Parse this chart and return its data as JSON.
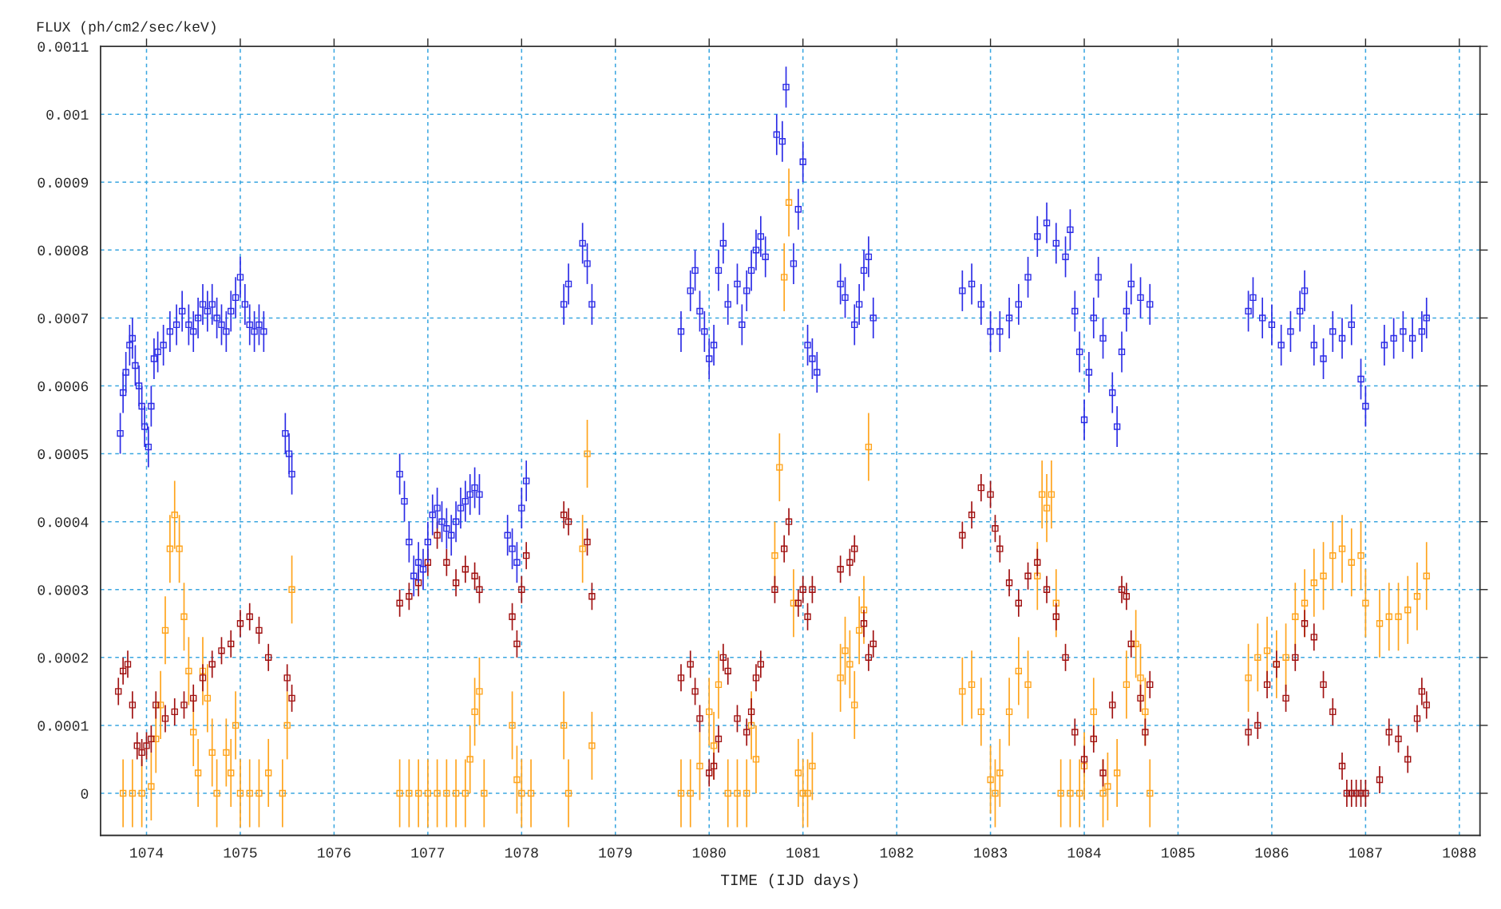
{
  "chart_data": {
    "type": "scatter",
    "xlabel": "TIME (IJD days)",
    "ylabel": "FLUX (ph/cm2/sec/keV)",
    "xlim": [
      1073.51,
      1088.22
    ],
    "ylim": [
      -6.2e-05,
      0.0011
    ],
    "xticks": [
      1074,
      1075,
      1076,
      1077,
      1078,
      1079,
      1080,
      1081,
      1082,
      1083,
      1084,
      1085,
      1086,
      1087,
      1088
    ],
    "yticks": [
      0,
      0.0001,
      0.0002,
      0.0003,
      0.0004,
      0.0005,
      0.0006,
      0.0007,
      0.0008,
      0.0009,
      0.001,
      0.0011
    ],
    "grid": true,
    "marker": "square",
    "legend": false,
    "series": [
      {
        "color": "#2b2be6",
        "errors": [
          3e-05,
          3e-05,
          3e-05,
          3e-05,
          3e-05,
          3e-05,
          3e-05,
          3e-05,
          3e-05,
          3e-05,
          3e-05,
          3e-05,
          3e-05,
          3e-05,
          3e-05,
          3e-05,
          3e-05,
          3e-05,
          3e-05,
          3e-05,
          3e-05,
          3e-05,
          3e-05,
          3e-05,
          3e-05,
          3e-05,
          3e-05,
          3e-05,
          3e-05,
          3e-05,
          3e-05,
          3e-05,
          3e-05,
          3e-05,
          3e-05,
          3e-05,
          3e-05,
          3e-05,
          3e-05,
          3e-05,
          3e-05,
          3e-05,
          3e-05,
          3e-05,
          3e-05,
          3e-05,
          3e-05,
          3e-05,
          3e-05,
          3e-05,
          3e-05,
          3e-05,
          3e-05,
          3e-05,
          3e-05,
          3e-05,
          3e-05,
          3e-05,
          3e-05,
          3e-05,
          3e-05,
          3e-05,
          3e-05,
          3e-05,
          3e-05,
          3e-05,
          3e-05,
          3e-05,
          3e-05,
          3e-05,
          3e-05,
          3e-05,
          3e-05,
          3e-05,
          3e-05,
          3e-05,
          3e-05,
          3e-05,
          3e-05,
          3e-05,
          3e-05,
          3e-05,
          3e-05,
          3e-05,
          3e-05,
          3e-05,
          3e-05,
          3e-05,
          3e-05,
          3e-05,
          3e-05,
          3e-05,
          3e-05,
          3e-05,
          3e-05,
          3e-05,
          3e-05,
          3e-05,
          3e-05,
          3e-05,
          3e-05,
          3e-05,
          3e-05,
          3e-05,
          3e-05,
          3e-05,
          3e-05,
          3e-05,
          3e-05,
          3e-05,
          3e-05,
          3e-05,
          3e-05,
          3e-05,
          3e-05,
          3e-05,
          3e-05,
          3e-05,
          3e-05,
          3e-05,
          3e-05,
          3e-05,
          3e-05,
          3e-05,
          3e-05,
          3e-05,
          3e-05,
          3e-05,
          3e-05,
          3e-05,
          3e-05,
          3e-05,
          3e-05,
          3e-05,
          3e-05,
          3e-05,
          3e-05,
          3e-05,
          3e-05,
          3e-05,
          3e-05,
          3e-05,
          3e-05,
          3e-05,
          3e-05,
          3e-05
        ],
        "x": [
          1073.72,
          1073.75,
          1073.78,
          1073.82,
          1073.85,
          1073.88,
          1073.92,
          1073.95,
          1073.98,
          1074.02,
          1074.05,
          1074.08,
          1074.12,
          1074.18,
          1074.25,
          1074.32,
          1074.38,
          1074.45,
          1074.5,
          1074.55,
          1074.6,
          1074.65,
          1074.7,
          1074.75,
          1074.8,
          1074.85,
          1074.9,
          1074.95,
          1075.0,
          1075.05,
          1075.1,
          1075.15,
          1075.2,
          1075.25,
          1075.48,
          1075.52,
          1075.55,
          1076.7,
          1076.75,
          1076.8,
          1076.85,
          1076.9,
          1076.95,
          1077.0,
          1077.05,
          1077.1,
          1077.15,
          1077.2,
          1077.25,
          1077.3,
          1077.35,
          1077.4,
          1077.45,
          1077.5,
          1077.55,
          1077.85,
          1077.9,
          1077.95,
          1078.0,
          1078.05,
          1078.45,
          1078.5,
          1078.65,
          1078.7,
          1078.75,
          1079.7,
          1079.8,
          1079.85,
          1079.9,
          1079.95,
          1080.0,
          1080.05,
          1080.1,
          1080.15,
          1080.2,
          1080.3,
          1080.35,
          1080.4,
          1080.45,
          1080.5,
          1080.55,
          1080.6,
          1080.72,
          1080.78,
          1080.82,
          1080.9,
          1080.95,
          1081.0,
          1081.05,
          1081.1,
          1081.15,
          1081.4,
          1081.45,
          1081.55,
          1081.6,
          1081.65,
          1081.7,
          1081.75,
          1082.7,
          1082.8,
          1082.9,
          1083.0,
          1083.1,
          1083.2,
          1083.3,
          1083.4,
          1083.5,
          1083.6,
          1083.7,
          1083.8,
          1083.85,
          1083.9,
          1083.95,
          1084.0,
          1084.05,
          1084.1,
          1084.15,
          1084.2,
          1084.3,
          1084.35,
          1084.4,
          1084.45,
          1084.5,
          1084.6,
          1084.7,
          1085.75,
          1085.8,
          1085.9,
          1086.0,
          1086.1,
          1086.2,
          1086.3,
          1086.35,
          1086.45,
          1086.55,
          1086.65,
          1086.75,
          1086.85,
          1086.95,
          1087.0,
          1087.2,
          1087.3,
          1087.4,
          1087.5,
          1087.6,
          1087.65
        ],
        "values": [
          0.00053,
          0.00059,
          0.00062,
          0.00066,
          0.00067,
          0.00063,
          0.0006,
          0.00057,
          0.00054,
          0.00051,
          0.00057,
          0.00064,
          0.00065,
          0.00066,
          0.00068,
          0.00069,
          0.00071,
          0.00069,
          0.00068,
          0.0007,
          0.00072,
          0.00071,
          0.00072,
          0.0007,
          0.00069,
          0.00068,
          0.00071,
          0.00073,
          0.00076,
          0.00072,
          0.00069,
          0.00068,
          0.00069,
          0.00068,
          0.00053,
          0.0005,
          0.00047,
          0.00047,
          0.00043,
          0.00037,
          0.00032,
          0.00034,
          0.00033,
          0.00037,
          0.00041,
          0.00042,
          0.0004,
          0.00039,
          0.00038,
          0.0004,
          0.00042,
          0.00043,
          0.00044,
          0.00045,
          0.00044,
          0.00038,
          0.00036,
          0.00034,
          0.00042,
          0.00046,
          0.00072,
          0.00075,
          0.00081,
          0.00078,
          0.00072,
          0.00068,
          0.00074,
          0.00077,
          0.00071,
          0.00068,
          0.00064,
          0.00066,
          0.00077,
          0.00081,
          0.00072,
          0.00075,
          0.00069,
          0.00074,
          0.00077,
          0.0008,
          0.00082,
          0.00079,
          0.00097,
          0.00096,
          0.00104,
          0.00078,
          0.00086,
          0.00093,
          0.00066,
          0.00064,
          0.00062,
          0.00075,
          0.00073,
          0.00069,
          0.00072,
          0.00077,
          0.00079,
          0.0007,
          0.00074,
          0.00075,
          0.00072,
          0.00068,
          0.00068,
          0.0007,
          0.00072,
          0.00076,
          0.00082,
          0.00084,
          0.00081,
          0.00079,
          0.00083,
          0.00071,
          0.00065,
          0.00055,
          0.00062,
          0.0007,
          0.00076,
          0.00067,
          0.00059,
          0.00054,
          0.00065,
          0.00071,
          0.00075,
          0.00073,
          0.00072,
          0.00071,
          0.00073,
          0.0007,
          0.00069,
          0.00066,
          0.00068,
          0.00071,
          0.00074,
          0.00066,
          0.00064,
          0.00068,
          0.00067,
          0.00069,
          0.00061,
          0.00057,
          0.00066,
          0.00067,
          0.00068,
          0.00067,
          0.00068,
          0.0007
        ]
      },
      {
        "color": "#a01010",
        "errors": [
          2e-05,
          2e-05,
          2e-05,
          2e-05,
          2e-05,
          2e-05,
          2e-05,
          2e-05,
          2e-05,
          2e-05,
          2e-05,
          2e-05,
          2e-05,
          2e-05,
          2e-05,
          2e-05,
          2e-05,
          2e-05,
          2e-05,
          2e-05,
          2e-05,
          2e-05,
          2e-05,
          2e-05,
          2e-05,
          2e-05,
          2e-05,
          2e-05,
          2e-05,
          2e-05,
          2e-05,
          2e-05,
          2e-05,
          2e-05,
          2e-05,
          2e-05,
          2e-05,
          2e-05,
          2e-05,
          2e-05,
          2e-05,
          2e-05,
          2e-05,
          2e-05,
          2e-05,
          2e-05,
          2e-05,
          2e-05,
          2e-05,
          2e-05,
          2e-05,
          2e-05,
          2e-05,
          2e-05,
          2e-05,
          2e-05,
          2e-05,
          2e-05,
          2e-05,
          2e-05,
          2e-05,
          2e-05,
          2e-05,
          2e-05,
          2e-05,
          2e-05,
          2e-05,
          2e-05,
          2e-05,
          2e-05,
          2e-05,
          2e-05,
          2e-05,
          2e-05,
          2e-05,
          2e-05,
          2e-05,
          2e-05,
          2e-05,
          2e-05,
          2e-05,
          2e-05,
          2e-05,
          2e-05,
          2e-05,
          2e-05,
          2e-05,
          2e-05,
          2e-05,
          2e-05,
          2e-05,
          2e-05,
          2e-05,
          2e-05,
          2e-05,
          2e-05,
          2e-05,
          2e-05,
          2e-05,
          2e-05,
          2e-05,
          2e-05,
          2e-05,
          2e-05,
          2e-05,
          2e-05,
          2e-05,
          2e-05,
          2e-05,
          2e-05,
          2e-05,
          2e-05,
          2e-05,
          2e-05,
          2e-05
        ],
        "x": [
          1073.7,
          1073.75,
          1073.8,
          1073.85,
          1073.9,
          1073.95,
          1074.0,
          1074.05,
          1074.1,
          1074.2,
          1074.3,
          1074.4,
          1074.5,
          1074.6,
          1074.7,
          1074.8,
          1074.9,
          1075.0,
          1075.1,
          1075.2,
          1075.3,
          1075.5,
          1075.55,
          1076.7,
          1076.8,
          1076.9,
          1077.0,
          1077.1,
          1077.2,
          1077.3,
          1077.4,
          1077.5,
          1077.55,
          1077.9,
          1077.95,
          1078.0,
          1078.05,
          1078.45,
          1078.5,
          1078.7,
          1078.75,
          1079.7,
          1079.8,
          1079.85,
          1079.9,
          1080.0,
          1080.05,
          1080.1,
          1080.15,
          1080.2,
          1080.3,
          1080.4,
          1080.45,
          1080.5,
          1080.55,
          1080.7,
          1080.8,
          1080.85,
          1080.95,
          1081.0,
          1081.05,
          1081.1,
          1081.4,
          1081.5,
          1081.55,
          1081.65,
          1081.7,
          1081.75,
          1082.7,
          1082.8,
          1082.9,
          1083.0,
          1083.05,
          1083.1,
          1083.2,
          1083.3,
          1083.4,
          1083.5,
          1083.6,
          1083.7,
          1083.8,
          1083.9,
          1084.0,
          1084.1,
          1084.2,
          1084.3,
          1084.4,
          1084.45,
          1084.5,
          1084.6,
          1084.65,
          1084.7,
          1085.75,
          1085.85,
          1085.95,
          1086.05,
          1086.15,
          1086.25,
          1086.35,
          1086.45,
          1086.55,
          1086.65,
          1086.75,
          1086.8,
          1086.85,
          1086.9,
          1086.95,
          1087.0,
          1087.15,
          1087.25,
          1087.35,
          1087.45,
          1087.55,
          1087.6,
          1087.65
        ],
        "values": [
          0.00015,
          0.00018,
          0.00019,
          0.00013,
          7e-05,
          6e-05,
          7e-05,
          8e-05,
          0.00013,
          0.00011,
          0.00012,
          0.00013,
          0.00014,
          0.00017,
          0.00019,
          0.00021,
          0.00022,
          0.00025,
          0.00026,
          0.00024,
          0.0002,
          0.00017,
          0.00014,
          0.00028,
          0.00029,
          0.00031,
          0.00034,
          0.00038,
          0.00034,
          0.00031,
          0.00033,
          0.00032,
          0.0003,
          0.00026,
          0.00022,
          0.0003,
          0.00035,
          0.00041,
          0.0004,
          0.00037,
          0.00029,
          0.00017,
          0.00019,
          0.00015,
          0.00011,
          3e-05,
          4e-05,
          8e-05,
          0.0002,
          0.00018,
          0.00011,
          9e-05,
          0.00012,
          0.00017,
          0.00019,
          0.0003,
          0.00036,
          0.0004,
          0.00028,
          0.0003,
          0.00026,
          0.0003,
          0.00033,
          0.00034,
          0.00036,
          0.00025,
          0.0002,
          0.00022,
          0.00038,
          0.00041,
          0.00045,
          0.00044,
          0.00039,
          0.00036,
          0.00031,
          0.00028,
          0.00032,
          0.00034,
          0.0003,
          0.00026,
          0.0002,
          9e-05,
          5e-05,
          8e-05,
          3e-05,
          0.00013,
          0.0003,
          0.00029,
          0.00022,
          0.00014,
          9e-05,
          0.00016,
          9e-05,
          0.0001,
          0.00016,
          0.00019,
          0.00014,
          0.0002,
          0.00025,
          0.00023,
          0.00016,
          0.00012,
          4e-05,
          0,
          0,
          0,
          0,
          0,
          2e-05,
          9e-05,
          8e-05,
          5e-05,
          0.00011,
          0.00015,
          0.00013
        ]
      },
      {
        "color": "#ffa31a",
        "errors": [
          5e-05,
          5e-05,
          5e-05,
          5e-05,
          5e-05,
          5e-05,
          5e-05,
          5e-05,
          5e-05,
          5e-05,
          5e-05,
          5e-05,
          5e-05,
          5e-05,
          5e-05,
          5e-05,
          5e-05,
          5e-05,
          5e-05,
          5e-05,
          5e-05,
          5e-05,
          5e-05,
          5e-05,
          5e-05,
          5e-05,
          5e-05,
          5e-05,
          5e-05,
          5e-05,
          5e-05,
          5e-05,
          5e-05,
          5e-05,
          5e-05,
          5e-05,
          5e-05,
          5e-05,
          5e-05,
          5e-05,
          5e-05,
          5e-05,
          5e-05,
          5e-05,
          5e-05,
          5e-05,
          5e-05,
          5e-05,
          5e-05,
          5e-05,
          5e-05,
          5e-05,
          5e-05,
          5e-05,
          5e-05,
          5e-05,
          5e-05,
          5e-05,
          5e-05,
          5e-05,
          5e-05,
          5e-05,
          5e-05,
          5e-05,
          5e-05,
          5e-05,
          5e-05,
          5e-05,
          5e-05,
          5e-05,
          5e-05,
          5e-05,
          5e-05,
          5e-05,
          5e-05,
          5e-05,
          5e-05,
          5e-05,
          5e-05,
          5e-05,
          5e-05,
          5e-05,
          5e-05,
          5e-05,
          5e-05,
          5e-05,
          5e-05,
          5e-05,
          5e-05,
          5e-05,
          5e-05,
          5e-05,
          5e-05,
          5e-05,
          5e-05,
          5e-05,
          5e-05,
          5e-05,
          5e-05,
          5e-05,
          5e-05,
          5e-05,
          5e-05,
          5e-05,
          5e-05,
          5e-05,
          5e-05,
          5e-05,
          5e-05,
          5e-05,
          5e-05,
          5e-05,
          5e-05,
          5e-05,
          5e-05,
          5e-05,
          5e-05,
          5e-05,
          5e-05,
          5e-05,
          5e-05,
          5e-05,
          5e-05
        ],
        "x": [
          1073.75,
          1073.85,
          1073.95,
          1074.05,
          1074.1,
          1074.15,
          1074.2,
          1074.25,
          1074.3,
          1074.35,
          1074.4,
          1074.45,
          1074.5,
          1074.55,
          1074.6,
          1074.65,
          1074.7,
          1074.75,
          1074.85,
          1074.9,
          1074.95,
          1075.0,
          1075.1,
          1075.2,
          1075.3,
          1075.45,
          1075.5,
          1075.55,
          1076.7,
          1076.8,
          1076.9,
          1077.0,
          1077.1,
          1077.2,
          1077.3,
          1077.4,
          1077.45,
          1077.5,
          1077.55,
          1077.6,
          1077.9,
          1077.95,
          1078.0,
          1078.1,
          1078.45,
          1078.5,
          1078.65,
          1078.7,
          1078.75,
          1079.7,
          1079.8,
          1079.9,
          1080.0,
          1080.05,
          1080.1,
          1080.2,
          1080.3,
          1080.4,
          1080.45,
          1080.5,
          1080.7,
          1080.75,
          1080.8,
          1080.85,
          1080.9,
          1080.95,
          1081.0,
          1081.05,
          1081.1,
          1081.4,
          1081.45,
          1081.5,
          1081.55,
          1081.6,
          1081.65,
          1081.7,
          1082.7,
          1082.8,
          1082.9,
          1083.0,
          1083.05,
          1083.1,
          1083.2,
          1083.3,
          1083.4,
          1083.5,
          1083.55,
          1083.6,
          1083.65,
          1083.7,
          1083.75,
          1083.85,
          1083.95,
          1084.0,
          1084.1,
          1084.2,
          1084.25,
          1084.35,
          1084.45,
          1084.55,
          1084.6,
          1084.65,
          1084.7,
          1085.75,
          1085.85,
          1085.95,
          1086.05,
          1086.15,
          1086.25,
          1086.35,
          1086.45,
          1086.55,
          1086.65,
          1086.75,
          1086.85,
          1086.95,
          1087.0,
          1087.15,
          1087.25,
          1087.35,
          1087.45,
          1087.55,
          1087.65
        ],
        "values": [
          0,
          0,
          0,
          1e-05,
          8e-05,
          0.00013,
          0.00024,
          0.00036,
          0.00041,
          0.00036,
          0.00026,
          0.00018,
          9e-05,
          3e-05,
          0.00018,
          0.00014,
          6e-05,
          0,
          6e-05,
          3e-05,
          0.0001,
          0,
          0,
          0,
          3e-05,
          0,
          0.0001,
          0.0003,
          0,
          0,
          0,
          0,
          0,
          0,
          0,
          0,
          5e-05,
          0.00012,
          0.00015,
          0,
          0.0001,
          2e-05,
          0,
          0,
          0.0001,
          0,
          0.00036,
          0.0005,
          7e-05,
          0,
          0,
          4e-05,
          0.00012,
          7e-05,
          0.00016,
          0,
          0,
          0,
          0.0001,
          5e-05,
          0.00035,
          0.00048,
          0.00076,
          0.00087,
          0.00028,
          3e-05,
          0,
          0,
          4e-05,
          0.00017,
          0.00021,
          0.00019,
          0.00013,
          0.00024,
          0.00027,
          0.00051,
          0.00015,
          0.00016,
          0.00012,
          2e-05,
          0,
          3e-05,
          0.00012,
          0.00018,
          0.00016,
          0.00032,
          0.00044,
          0.00042,
          0.00044,
          0.00028,
          0,
          0,
          0,
          4e-05,
          0.00012,
          0,
          1e-05,
          3e-05,
          0.00016,
          0.00022,
          0.00017,
          0.00012,
          0,
          0.00017,
          0.0002,
          0.00021,
          0.00019,
          0.0002,
          0.00026,
          0.00028,
          0.00031,
          0.00032,
          0.00035,
          0.00036,
          0.00034,
          0.00035,
          0.00028,
          0.00025,
          0.00026,
          0.00026,
          0.00027,
          0.00029,
          0.00032
        ]
      }
    ]
  }
}
